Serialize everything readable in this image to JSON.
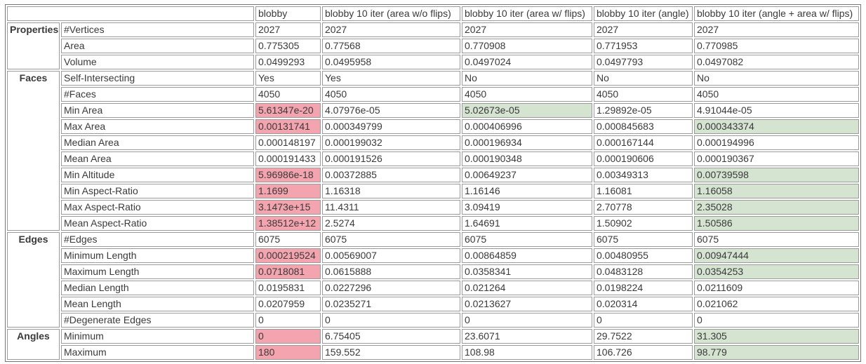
{
  "colors": {
    "worst_highlight_bg": "#f3a4ae",
    "best_highlight_bg": "#d5e3d1",
    "cell_border": "#9a9a9a",
    "table_border": "#767676",
    "text": "#3a3a3a"
  },
  "table": {
    "header": {
      "corner": "",
      "columns": [
        "blobby",
        "blobby 10 iter (area w/o flips)",
        "blobby 10 iter (area w/ flips)",
        "blobby 10 iter (angle)",
        "blobby 10 iter (angle + area w/ flips)"
      ]
    },
    "groups": [
      {
        "label": "Properties",
        "rows": [
          {
            "label": "#Vertices",
            "cells": [
              {
                "t": "2027"
              },
              {
                "t": "2027"
              },
              {
                "t": "2027"
              },
              {
                "t": "2027"
              },
              {
                "t": "2027"
              }
            ]
          },
          {
            "label": "Area",
            "cells": [
              {
                "t": "0.775305"
              },
              {
                "t": "0.77568"
              },
              {
                "t": "0.770908"
              },
              {
                "t": "0.771953"
              },
              {
                "t": "0.770985"
              }
            ]
          },
          {
            "label": "Volume",
            "cells": [
              {
                "t": "0.0499293"
              },
              {
                "t": "0.0495958"
              },
              {
                "t": "0.0497024"
              },
              {
                "t": "0.0497793"
              },
              {
                "t": "0.0497082"
              }
            ]
          }
        ]
      },
      {
        "label": "Faces",
        "rows": [
          {
            "label": "Self-Intersecting",
            "cells": [
              {
                "t": "Yes"
              },
              {
                "t": "Yes"
              },
              {
                "t": "No"
              },
              {
                "t": "No"
              },
              {
                "t": "No"
              }
            ]
          },
          {
            "label": "#Faces",
            "cells": [
              {
                "t": "4050"
              },
              {
                "t": "4050"
              },
              {
                "t": "4050"
              },
              {
                "t": "4050"
              },
              {
                "t": "4050"
              }
            ]
          },
          {
            "label": "Min Area",
            "cells": [
              {
                "t": "5.61347e-20",
                "hl": "bad"
              },
              {
                "t": "4.07976e-05"
              },
              {
                "t": "5.02673e-05",
                "hl": "good"
              },
              {
                "t": "1.29892e-05"
              },
              {
                "t": "4.91044e-05"
              }
            ]
          },
          {
            "label": "Max Area",
            "cells": [
              {
                "t": "0.00131741",
                "hl": "bad"
              },
              {
                "t": "0.000349799"
              },
              {
                "t": "0.000406996"
              },
              {
                "t": "0.000845683"
              },
              {
                "t": "0.000343374",
                "hl": "good"
              }
            ]
          },
          {
            "label": "Median Area",
            "cells": [
              {
                "t": "0.000148197"
              },
              {
                "t": "0.000199032"
              },
              {
                "t": "0.000196934"
              },
              {
                "t": "0.000167144"
              },
              {
                "t": "0.000194996"
              }
            ]
          },
          {
            "label": "Mean Area",
            "cells": [
              {
                "t": "0.000191433"
              },
              {
                "t": "0.000191526"
              },
              {
                "t": "0.000190348"
              },
              {
                "t": "0.000190606"
              },
              {
                "t": "0.000190367"
              }
            ]
          },
          {
            "label": "Min Altitude",
            "cells": [
              {
                "t": "5.96986e-18",
                "hl": "bad"
              },
              {
                "t": "0.00372885"
              },
              {
                "t": "0.00649237"
              },
              {
                "t": "0.00349313"
              },
              {
                "t": "0.00739598",
                "hl": "good"
              }
            ]
          },
          {
            "label": "Min Aspect-Ratio",
            "cells": [
              {
                "t": "1.1699",
                "hl": "bad"
              },
              {
                "t": "1.16318"
              },
              {
                "t": "1.16146"
              },
              {
                "t": "1.16081"
              },
              {
                "t": "1.16058",
                "hl": "good"
              }
            ]
          },
          {
            "label": "Max Aspect-Ratio",
            "cells": [
              {
                "t": "3.1473e+15",
                "hl": "bad"
              },
              {
                "t": "11.4311"
              },
              {
                "t": "3.09419"
              },
              {
                "t": "2.70778"
              },
              {
                "t": "2.35028",
                "hl": "good"
              }
            ]
          },
          {
            "label": "Mean Aspect-Ratio",
            "cells": [
              {
                "t": "1.38512e+12",
                "hl": "bad"
              },
              {
                "t": "2.5274"
              },
              {
                "t": "1.64691"
              },
              {
                "t": "1.50902"
              },
              {
                "t": "1.50586",
                "hl": "good"
              }
            ]
          }
        ]
      },
      {
        "label": "Edges",
        "rows": [
          {
            "label": "#Edges",
            "cells": [
              {
                "t": "6075"
              },
              {
                "t": "6075"
              },
              {
                "t": "6075"
              },
              {
                "t": "6075"
              },
              {
                "t": "6075"
              }
            ]
          },
          {
            "label": "Minimum Length",
            "cells": [
              {
                "t": "0.000219524",
                "hl": "bad"
              },
              {
                "t": "0.00569007"
              },
              {
                "t": "0.00864859"
              },
              {
                "t": "0.00480955"
              },
              {
                "t": "0.00947444",
                "hl": "good"
              }
            ]
          },
          {
            "label": "Maximum Length",
            "cells": [
              {
                "t": "0.0718081",
                "hl": "bad"
              },
              {
                "t": "0.0615888"
              },
              {
                "t": "0.0358341"
              },
              {
                "t": "0.0483128"
              },
              {
                "t": "0.0354253",
                "hl": "good"
              }
            ]
          },
          {
            "label": "Median Length",
            "cells": [
              {
                "t": "0.0195831"
              },
              {
                "t": "0.0227296"
              },
              {
                "t": "0.021264"
              },
              {
                "t": "0.0198224"
              },
              {
                "t": "0.0211609"
              }
            ]
          },
          {
            "label": "Mean Length",
            "cells": [
              {
                "t": "0.0207959"
              },
              {
                "t": "0.0235271"
              },
              {
                "t": "0.0213627"
              },
              {
                "t": "0.020314"
              },
              {
                "t": "0.021062"
              }
            ]
          },
          {
            "label": "#Degenerate Edges",
            "cells": [
              {
                "t": "0"
              },
              {
                "t": "0"
              },
              {
                "t": "0"
              },
              {
                "t": "0"
              },
              {
                "t": "0"
              }
            ]
          }
        ]
      },
      {
        "label": "Angles",
        "rows": [
          {
            "label": "Minimum",
            "cells": [
              {
                "t": "0",
                "hl": "bad"
              },
              {
                "t": "6.75405"
              },
              {
                "t": "23.6071"
              },
              {
                "t": "29.7522"
              },
              {
                "t": "31.305",
                "hl": "good"
              }
            ]
          },
          {
            "label": "Maximum",
            "cells": [
              {
                "t": "180",
                "hl": "bad"
              },
              {
                "t": "159.552"
              },
              {
                "t": "108.98"
              },
              {
                "t": "106.726"
              },
              {
                "t": "98.779",
                "hl": "good"
              }
            ]
          }
        ]
      }
    ]
  }
}
